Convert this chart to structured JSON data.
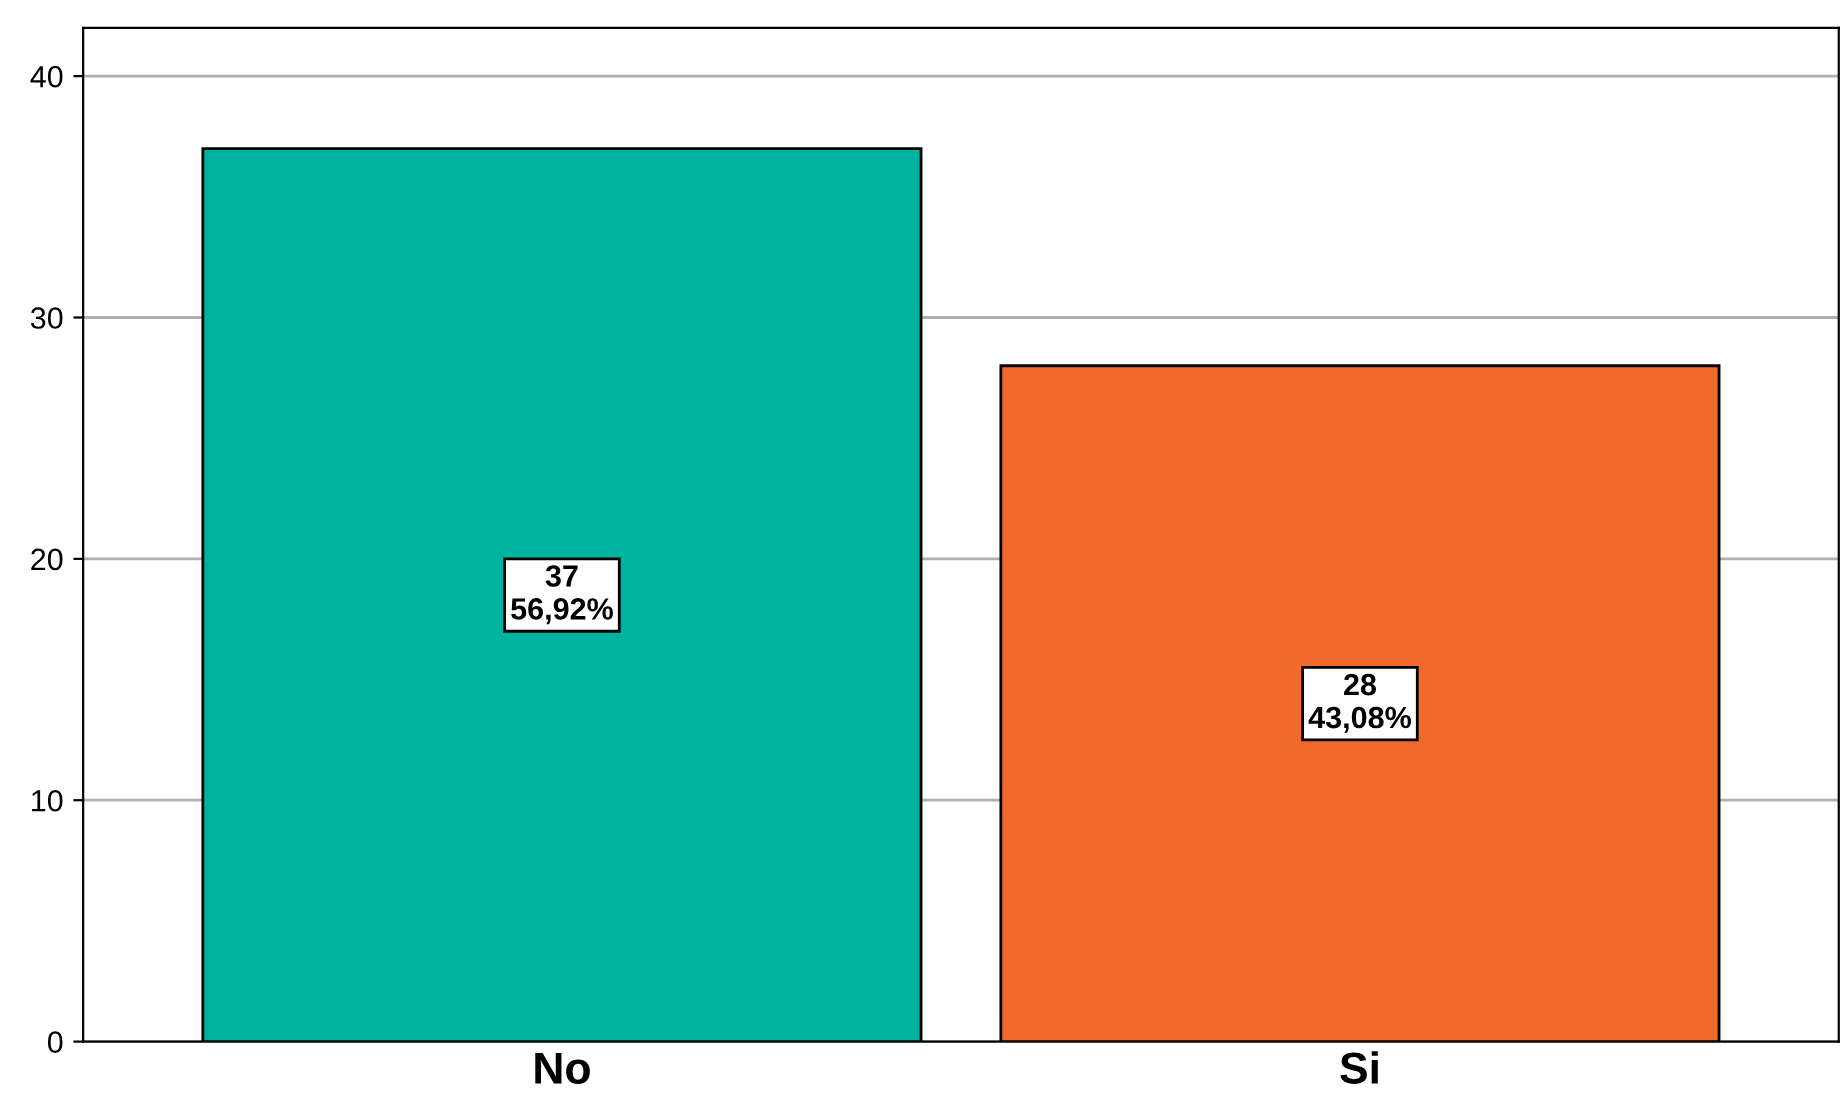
{
  "chart_data": {
    "type": "bar",
    "categories": [
      "No",
      "Si"
    ],
    "values": [
      37,
      28
    ],
    "colors": [
      "#00b3a0",
      "#f2692c"
    ],
    "value_labels": [
      "37\n56,92%",
      "28\n43,08%"
    ],
    "ylim": [
      0,
      42
    ],
    "yticks": [
      0,
      10,
      20,
      30,
      40
    ],
    "grid": "y"
  }
}
